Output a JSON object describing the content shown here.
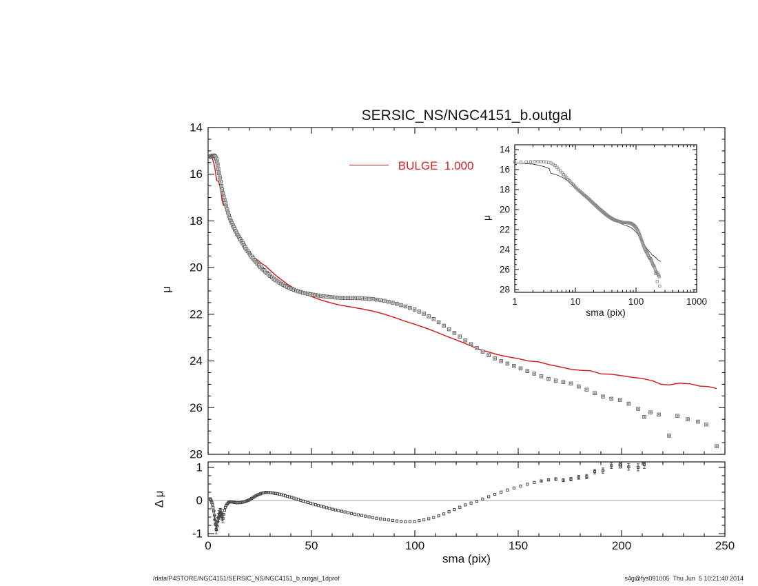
{
  "figure": {
    "footer_left": "/data/P4STORE/NGC4151/SERSIC_NS/NGC4151_b.outgal_1dprof",
    "footer_right": "s4g@fys091005  Thu Jun  5 10:21:40 2014",
    "background": "#ffffff",
    "axis_color": "#161616"
  },
  "chart_data": [
    {
      "id": "main",
      "type": "scatter",
      "title": "SERSIC_NS/NGC4151_b.outgal",
      "xlabel": "",
      "ylabel": "μ",
      "xlim": [
        0,
        250
      ],
      "ylim": [
        28,
        14
      ],
      "y_axis_inverted": true,
      "grid": false,
      "x_ticks_major": [
        0,
        50,
        100,
        150,
        200,
        250
      ],
      "x_tick_minor_step": 10,
      "y_ticks_major": [
        14,
        16,
        18,
        20,
        22,
        24,
        26,
        28
      ],
      "y_tick_minor_step": 0.5,
      "marker": "open-square",
      "marker_color": "#696969",
      "sampling": {
        "start": 1,
        "end": 205,
        "ratio": 1.02,
        "increment": 0.25
      },
      "series": [
        {
          "name": "data",
          "kind": "markers",
          "anchors": [
            [
              1,
              15.25
            ],
            [
              1.6,
              15.22
            ],
            [
              2.2,
              15.2
            ],
            [
              2.8,
              15.2
            ],
            [
              3.4,
              15.24
            ],
            [
              4,
              15.35
            ],
            [
              4.6,
              15.58
            ],
            [
              5.2,
              15.9
            ],
            [
              5.8,
              16.2
            ],
            [
              6.4,
              16.5
            ],
            [
              7,
              16.75
            ],
            [
              7.6,
              16.98
            ],
            [
              8.2,
              17.18
            ],
            [
              9,
              17.45
            ],
            [
              10,
              17.75
            ],
            [
              11,
              18.0
            ],
            [
              12,
              18.2
            ],
            [
              13,
              18.38
            ],
            [
              14,
              18.55
            ],
            [
              15,
              18.7
            ],
            [
              16,
              18.85
            ],
            [
              18,
              19.15
            ],
            [
              20,
              19.4
            ],
            [
              22,
              19.64
            ],
            [
              24,
              19.85
            ],
            [
              26,
              20.04
            ],
            [
              28,
              20.2
            ],
            [
              30,
              20.35
            ],
            [
              32,
              20.5
            ],
            [
              34,
              20.62
            ],
            [
              36,
              20.72
            ],
            [
              38,
              20.82
            ],
            [
              40,
              20.9
            ],
            [
              43,
              21.0
            ],
            [
              46,
              21.08
            ],
            [
              50,
              21.15
            ],
            [
              55,
              21.22
            ],
            [
              60,
              21.27
            ],
            [
              65,
              21.3
            ],
            [
              70,
              21.3
            ],
            [
              75,
              21.32
            ],
            [
              80,
              21.35
            ],
            [
              85,
              21.42
            ],
            [
              90,
              21.52
            ],
            [
              95,
              21.65
            ],
            [
              100,
              21.8
            ],
            [
              105,
              22.0
            ],
            [
              110,
              22.25
            ],
            [
              115,
              22.55
            ],
            [
              120,
              22.85
            ],
            [
              125,
              23.15
            ],
            [
              130,
              23.45
            ],
            [
              135,
              23.72
            ],
            [
              140,
              23.95
            ],
            [
              145,
              24.12
            ],
            [
              150,
              24.28
            ],
            [
              155,
              24.45
            ],
            [
              160,
              24.62
            ],
            [
              165,
              24.78
            ],
            [
              170,
              24.88
            ],
            [
              175,
              24.95
            ],
            [
              180,
              25.12
            ],
            [
              185,
              25.3
            ],
            [
              190,
              25.5
            ],
            [
              195,
              25.62
            ],
            [
              200,
              25.68
            ],
            [
              205,
              25.9
            ],
            [
              208,
              26.05
            ],
            [
              211,
              26.4
            ],
            [
              214,
              26.2
            ],
            [
              218,
              26.3
            ],
            [
              223,
              27.2
            ],
            [
              227,
              26.35
            ],
            [
              232,
              26.5
            ],
            [
              237,
              26.6
            ],
            [
              241,
              26.72
            ],
            [
              246,
              27.65
            ]
          ]
        },
        {
          "name": "BULGE  1.000",
          "kind": "line",
          "color": "#d42020",
          "anchors": [
            [
              1,
              15.2
            ],
            [
              2,
              15.32
            ],
            [
              2.6,
              15.47
            ],
            [
              3.2,
              15.7
            ],
            [
              3.8,
              16.05
            ],
            [
              4.2,
              16.27
            ],
            [
              5,
              16.3
            ],
            [
              5.6,
              16.48
            ],
            [
              6.2,
              16.75
            ],
            [
              6.8,
              17.15
            ],
            [
              7.4,
              17.33
            ],
            [
              8,
              17.35
            ],
            [
              9,
              17.57
            ],
            [
              10,
              17.8
            ],
            [
              12,
              18.25
            ],
            [
              14,
              18.62
            ],
            [
              16,
              18.91
            ],
            [
              18,
              19.18
            ],
            [
              20,
              19.38
            ],
            [
              22,
              19.55
            ],
            [
              24,
              19.68
            ],
            [
              26,
              19.83
            ],
            [
              28,
              19.95
            ],
            [
              30,
              20.11
            ],
            [
              32,
              20.28
            ],
            [
              34,
              20.42
            ],
            [
              36,
              20.55
            ],
            [
              38,
              20.69
            ],
            [
              40,
              20.8
            ],
            [
              43,
              20.96
            ],
            [
              46,
              21.1
            ],
            [
              50,
              21.24
            ],
            [
              55,
              21.4
            ],
            [
              60,
              21.53
            ],
            [
              65,
              21.63
            ],
            [
              70,
              21.7
            ],
            [
              75,
              21.78
            ],
            [
              80,
              21.87
            ],
            [
              85,
              21.99
            ],
            [
              90,
              22.13
            ],
            [
              95,
              22.29
            ],
            [
              100,
              22.43
            ],
            [
              105,
              22.58
            ],
            [
              110,
              22.75
            ],
            [
              115,
              22.93
            ],
            [
              120,
              23.1
            ],
            [
              125,
              23.27
            ],
            [
              130,
              23.47
            ],
            [
              135,
              23.6
            ],
            [
              140,
              23.73
            ],
            [
              145,
              23.82
            ],
            [
              150,
              23.9
            ],
            [
              155,
              24.0
            ],
            [
              160,
              24.04
            ],
            [
              165,
              24.16
            ],
            [
              170,
              24.25
            ],
            [
              175,
              24.35
            ],
            [
              180,
              24.4
            ],
            [
              185,
              24.42
            ],
            [
              190,
              24.55
            ],
            [
              195,
              24.57
            ],
            [
              200,
              24.63
            ],
            [
              205,
              24.7
            ],
            [
              210,
              24.75
            ],
            [
              215,
              24.85
            ],
            [
              219,
              25.0
            ],
            [
              223,
              25.03
            ],
            [
              228,
              24.95
            ],
            [
              233,
              24.98
            ],
            [
              238,
              25.08
            ],
            [
              242,
              25.1
            ],
            [
              246,
              25.18
            ]
          ]
        }
      ]
    },
    {
      "id": "inset",
      "type": "scatter",
      "xscale": "log",
      "xlabel": "sma (pix)",
      "ylabel": "μ",
      "xlim": [
        1,
        1000
      ],
      "ylim": [
        28,
        14
      ],
      "x_ticks_major": [
        1,
        10,
        100,
        1000
      ],
      "y_ticks_major": [
        14,
        16,
        18,
        20,
        22,
        24,
        26,
        28
      ],
      "y_tick_minor_step": 0.5,
      "model_line_color": "#3c3c3c",
      "model_anchors": [
        [
          1,
          15.33
        ],
        [
          2,
          15.45
        ],
        [
          3,
          15.68
        ],
        [
          3.7,
          15.9
        ],
        [
          3.9,
          16.35
        ],
        [
          5,
          16.55
        ],
        [
          6,
          16.75
        ],
        [
          7,
          17.0
        ],
        [
          8,
          17.3
        ],
        [
          10,
          17.8
        ],
        [
          12,
          18.25
        ],
        [
          14,
          18.6
        ],
        [
          17,
          19.0
        ],
        [
          20,
          19.4
        ],
        [
          24,
          19.7
        ],
        [
          28,
          20.0
        ],
        [
          34,
          20.45
        ],
        [
          40,
          20.8
        ],
        [
          48,
          21.15
        ],
        [
          55,
          21.38
        ],
        [
          65,
          21.55
        ],
        [
          75,
          21.68
        ],
        [
          85,
          21.85
        ],
        [
          95,
          22.1
        ],
        [
          105,
          22.4
        ],
        [
          115,
          22.75
        ],
        [
          125,
          23.1
        ],
        [
          135,
          23.45
        ],
        [
          145,
          23.75
        ],
        [
          160,
          24.1
        ],
        [
          175,
          24.35
        ],
        [
          185,
          24.55
        ],
        [
          195,
          24.6
        ],
        [
          205,
          24.75
        ],
        [
          215,
          24.85
        ],
        [
          225,
          25.0
        ],
        [
          240,
          25.1
        ],
        [
          255,
          25.2
        ]
      ]
    },
    {
      "id": "residual",
      "type": "scatter",
      "xlabel": "sma (pix)",
      "ylabel": "Δ μ",
      "xlim": [
        0,
        250
      ],
      "ylim": [
        -1.08,
        1.17
      ],
      "x_ticks_major": [
        0,
        50,
        100,
        150,
        200,
        250
      ],
      "x_tick_minor_step": 10,
      "y_ticks_major": [
        -1,
        0,
        1
      ],
      "y_tick_minor_step": 0.25,
      "zero_line": true,
      "zero_line_color": "#a3a3a3",
      "marker_color": "#454545",
      "anchors": [
        [
          1,
          0.05
        ],
        [
          1.6,
          -0.02
        ],
        [
          2.2,
          -0.15
        ],
        [
          2.8,
          -0.35
        ],
        [
          3.4,
          -0.62
        ],
        [
          4,
          -0.9
        ],
        [
          4.4,
          -0.72
        ],
        [
          5,
          -0.5
        ],
        [
          5.6,
          -0.38
        ],
        [
          6.2,
          -0.36
        ],
        [
          6.8,
          -0.48
        ],
        [
          7.2,
          -0.55
        ],
        [
          7.8,
          -0.33
        ],
        [
          8.4,
          -0.2
        ],
        [
          9,
          -0.12
        ],
        [
          10,
          -0.05
        ],
        [
          11,
          -0.04
        ],
        [
          12,
          -0.05
        ],
        [
          13,
          -0.06
        ],
        [
          14,
          -0.07
        ],
        [
          16,
          -0.06
        ],
        [
          18,
          -0.03
        ],
        [
          20,
          0.02
        ],
        [
          22,
          0.1
        ],
        [
          24,
          0.17
        ],
        [
          26,
          0.22
        ],
        [
          28,
          0.25
        ],
        [
          30,
          0.24
        ],
        [
          32,
          0.22
        ],
        [
          34,
          0.2
        ],
        [
          36,
          0.17
        ],
        [
          38,
          0.13
        ],
        [
          40,
          0.1
        ],
        [
          43,
          0.04
        ],
        [
          46,
          -0.02
        ],
        [
          50,
          -0.09
        ],
        [
          55,
          -0.18
        ],
        [
          60,
          -0.26
        ],
        [
          65,
          -0.33
        ],
        [
          70,
          -0.4
        ],
        [
          75,
          -0.46
        ],
        [
          80,
          -0.52
        ],
        [
          85,
          -0.57
        ],
        [
          90,
          -0.61
        ],
        [
          95,
          -0.64
        ],
        [
          100,
          -0.63
        ],
        [
          105,
          -0.58
        ],
        [
          110,
          -0.5
        ],
        [
          115,
          -0.38
        ],
        [
          120,
          -0.25
        ],
        [
          125,
          -0.12
        ],
        [
          130,
          -0.02
        ],
        [
          133,
          0.05
        ],
        [
          136,
          0.12
        ],
        [
          140,
          0.22
        ],
        [
          144,
          0.3
        ],
        [
          148,
          0.38
        ],
        [
          152,
          0.45
        ],
        [
          156,
          0.52
        ],
        [
          160,
          0.58
        ],
        [
          164,
          0.62
        ],
        [
          168,
          0.65
        ],
        [
          171,
          0.62
        ],
        [
          174,
          0.6
        ],
        [
          178,
          0.72
        ],
        [
          182,
          0.66
        ],
        [
          186,
          0.88
        ],
        [
          190,
          0.85
        ],
        [
          194,
          1.06
        ],
        [
          198,
          1.04
        ],
        [
          201,
          1.12
        ],
        [
          205,
          0.95
        ],
        [
          209,
          1.02
        ],
        [
          213,
          1.15
        ]
      ],
      "error_anchors": [
        [
          160,
          0.03
        ],
        [
          175,
          0.05
        ],
        [
          190,
          0.08
        ],
        [
          205,
          0.1
        ],
        [
          213,
          0.12
        ]
      ],
      "early_error": {
        "from": 2.8,
        "to": 7.2,
        "value": 0.13
      },
      "clip_value": 1.1
    }
  ]
}
